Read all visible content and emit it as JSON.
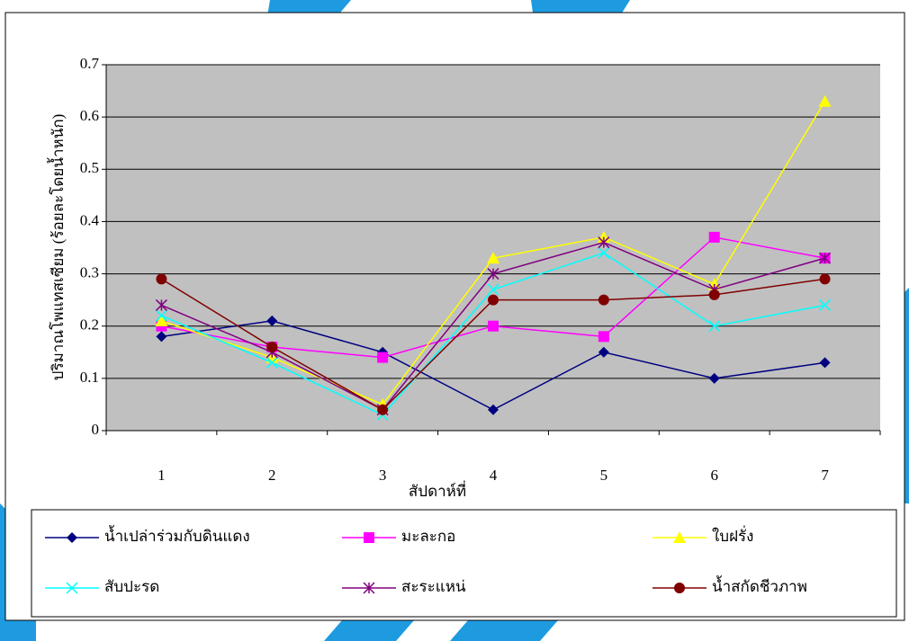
{
  "chart_data": {
    "type": "line",
    "x_label": "สัปดาห์ที่",
    "y_label": "ปริมาณโพแทสเซียม   (ร้อยละโดยน้ำหนัก)",
    "categories": [
      "1",
      "2",
      "3",
      "4",
      "5",
      "6",
      "7"
    ],
    "ylim": [
      0,
      0.7
    ],
    "yticks": [
      0,
      0.1,
      0.2,
      0.3,
      0.4,
      0.5,
      0.6,
      0.7
    ],
    "grid": true,
    "series": [
      {
        "name": "น้ำเปล่าร่วมกับดินแดง",
        "color": "#000080",
        "marker": "diamond",
        "values": [
          0.18,
          0.21,
          0.15,
          0.04,
          0.15,
          0.1,
          0.13
        ]
      },
      {
        "name": "มะละกอ",
        "color": "#ff00ff",
        "marker": "square",
        "values": [
          0.2,
          0.16,
          0.14,
          0.2,
          0.18,
          0.37,
          0.33
        ]
      },
      {
        "name": "ใบฝรั่ง",
        "color": "#ffff00",
        "marker": "triangle",
        "values": [
          0.21,
          0.14,
          0.05,
          0.33,
          0.37,
          0.28,
          0.63
        ]
      },
      {
        "name": "สับปะรด",
        "color": "#00ffff",
        "marker": "x",
        "values": [
          0.22,
          0.13,
          0.03,
          0.27,
          0.34,
          0.2,
          0.24
        ]
      },
      {
        "name": "สะระแหน่",
        "color": "#800080",
        "marker": "star",
        "values": [
          0.24,
          0.15,
          0.04,
          0.3,
          0.36,
          0.27,
          0.33
        ]
      },
      {
        "name": "น้ำสกัดชีวภาพ",
        "color": "#800000",
        "marker": "circle",
        "values": [
          0.29,
          0.16,
          0.04,
          0.25,
          0.25,
          0.26,
          0.29
        ]
      }
    ]
  }
}
